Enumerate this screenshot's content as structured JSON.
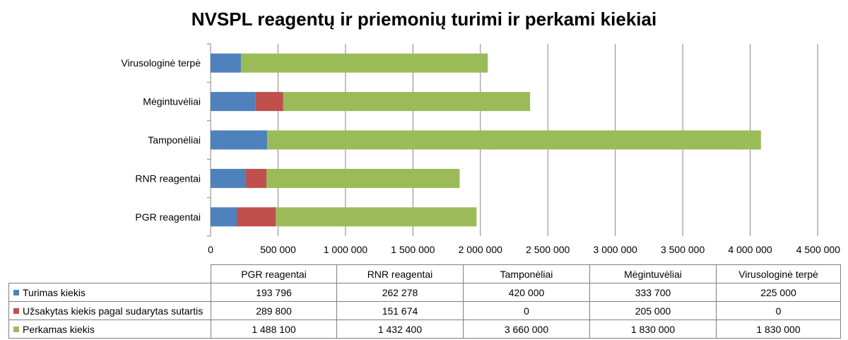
{
  "chart_data": {
    "type": "bar",
    "orientation": "horizontal",
    "stacked": true,
    "title": "NVSPL reagentų ir priemonių turimi ir perkami kiekiai",
    "categories": [
      "PGR reagentai",
      "RNR reagentai",
      "Tamponėliai",
      "Mėgintuvėliai",
      "Virusologinė terpė"
    ],
    "series": [
      {
        "name": "Turimas kiekis",
        "color": "#4f81bd",
        "values": [
          193796,
          262278,
          420000,
          333700,
          225000
        ],
        "labels": [
          "193 796",
          "262 278",
          "420 000",
          "333 700",
          "225 000"
        ]
      },
      {
        "name": "Užsakytas kiekis pagal sudarytas sutartis",
        "color": "#c0504d",
        "values": [
          289800,
          151674,
          0,
          205000,
          0
        ],
        "labels": [
          "289 800",
          "151 674",
          "0",
          "205 000",
          "0"
        ]
      },
      {
        "name": "Perkamas kiekis",
        "color": "#9bbb59",
        "values": [
          1488100,
          1432400,
          3660000,
          1830000,
          1830000
        ],
        "labels": [
          "1 488 100",
          "1 432 400",
          "3 660 000",
          "1 830 000",
          "1 830 000"
        ]
      }
    ],
    "xlim": [
      0,
      4500000
    ],
    "tick_values": [
      0,
      500000,
      1000000,
      1500000,
      2000000,
      2500000,
      3000000,
      3500000,
      4000000,
      4500000
    ],
    "tick_labels": [
      "0",
      "500 000",
      "1 000 000",
      "1 500 000",
      "2 000 000",
      "2 500 000",
      "3 000 000",
      "3 500 000",
      "4 000 000",
      "4 500 000"
    ],
    "grid": true,
    "legend": "data-table",
    "xlabel": "",
    "ylabel": ""
  }
}
